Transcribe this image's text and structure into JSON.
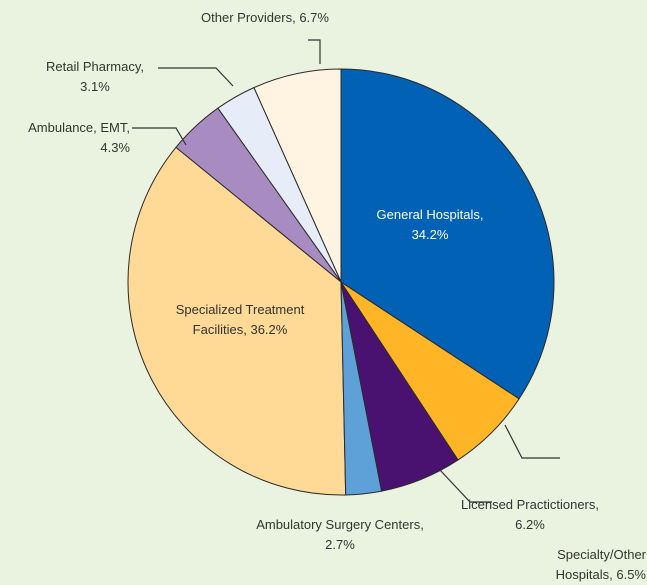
{
  "chart_data": {
    "type": "pie",
    "categories": [
      "General Hospitals,",
      "Specialty/Other Hospitals,",
      "Licensed Practictioners,",
      "Ambulatory Surgery Centers,",
      "Specialized Treatment Facilities,",
      "Ambulance, EMT,",
      "Retail Pharmacy,",
      "Other Providers,"
    ],
    "values": [
      34.2,
      6.5,
      6.2,
      2.7,
      36.2,
      4.3,
      3.1,
      6.7
    ],
    "value_labels": [
      "34.2%",
      "6.5%",
      "6.2%",
      "2.7%",
      "36.2%",
      "4.3%",
      "3.1%",
      "6.7%"
    ],
    "colors": [
      "#0061b5",
      "#ffb526",
      "#4a1270",
      "#5ea1d9",
      "#ffd996",
      "#a88bc1",
      "#e6ecf8",
      "#fff4e1"
    ]
  }
}
